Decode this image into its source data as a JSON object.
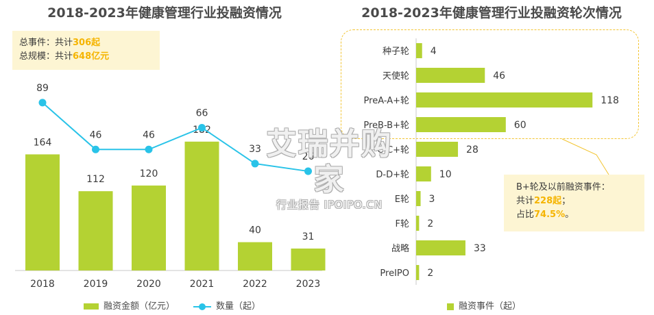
{
  "left_title": "2018-2023年健康管理行业投融资情况",
  "right_title": "2018-2023年健康管理行业投融资轮次情况",
  "summary": {
    "line1_prefix": "总事件：共计",
    "line1_value": "306起",
    "line2_prefix": "总规模：共计",
    "line2_value": "648亿元"
  },
  "callout": {
    "line1": "B+轮及以前融资事件：",
    "line2_prefix": "共计",
    "line2_value": "228起",
    "line2_suffix": "；",
    "line3_prefix": "占比",
    "line3_value": "74.5%",
    "line3_suffix": "。"
  },
  "legends": {
    "left_bar": "融资金额（亿元）",
    "left_line": "数量（起）",
    "right_bar": "融资事件（起）"
  },
  "watermark": {
    "main": "艾瑞并购家",
    "sub": "行业报告 IPOIPO.CN"
  },
  "colors": {
    "bar": "#b4d233",
    "line": "#29c3e8",
    "highlight": "#f5b400"
  },
  "chart_data": [
    {
      "type": "bar",
      "title": "2018-2023年健康管理行业投融资情况",
      "categories": [
        "2018",
        "2019",
        "2020",
        "2021",
        "2022",
        "2023"
      ],
      "series": [
        {
          "name": "融资金额（亿元）",
          "type": "bar",
          "values": [
            164,
            112,
            120,
            182,
            40,
            31
          ]
        },
        {
          "name": "数量（起）",
          "type": "line",
          "values": [
            89,
            46,
            46,
            66,
            33,
            26
          ]
        }
      ],
      "grid": false,
      "legend": "bottom"
    },
    {
      "type": "bar",
      "orientation": "horizontal",
      "title": "2018-2023年健康管理行业投融资轮次情况",
      "categories": [
        "种子轮",
        "天使轮",
        "PreA-A+轮",
        "PreB-B+轮",
        "C-C+轮",
        "D-D+轮",
        "E轮",
        "F轮",
        "战略",
        "PreIPO"
      ],
      "series": [
        {
          "name": "融资事件（起）",
          "values": [
            4,
            46,
            118,
            60,
            28,
            10,
            3,
            2,
            33,
            2
          ]
        }
      ],
      "grid": false,
      "legend": "bottom"
    }
  ]
}
